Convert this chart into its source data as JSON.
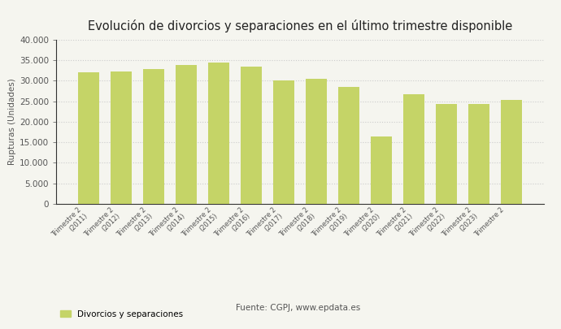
{
  "title": "Evolución de divorcios y separaciones en el último trimestre disponible",
  "ylabel": "Rupturas (Unidades)",
  "bar_color": "#c5d467",
  "categories": [
    "Trimestre 2\n(2011)",
    "Trimestre 2\n(2012)",
    "Trimestre 2\n(2013)",
    "Trimestre 2\n(2014)",
    "Trimestre 2\n(2015)",
    "Trimestre 2\n(2016)",
    "Trimestre 2\n(2017)",
    "Trimestre 2\n(2018)",
    "Trimestre 2\n(2019)",
    "Trimestre 2\n(2020)",
    "Trimestre 2\n(2021)",
    "Trimestre 2\n(2022)",
    "Trimestre 2\n(2023)",
    "Trimestre 2\n "
  ],
  "values": [
    32100,
    32200,
    32900,
    33700,
    34350,
    33400,
    30000,
    30500,
    28500,
    16500,
    26600,
    24400,
    24400,
    25400
  ],
  "ylim": [
    0,
    40000
  ],
  "yticks": [
    0,
    5000,
    10000,
    15000,
    20000,
    25000,
    30000,
    35000,
    40000
  ],
  "legend_label": "Divorcios y separaciones",
  "source_text": "Fuente: CGPJ, www.epdata.es",
  "background_color": "#f5f5ef",
  "grid_color": "#cccccc"
}
